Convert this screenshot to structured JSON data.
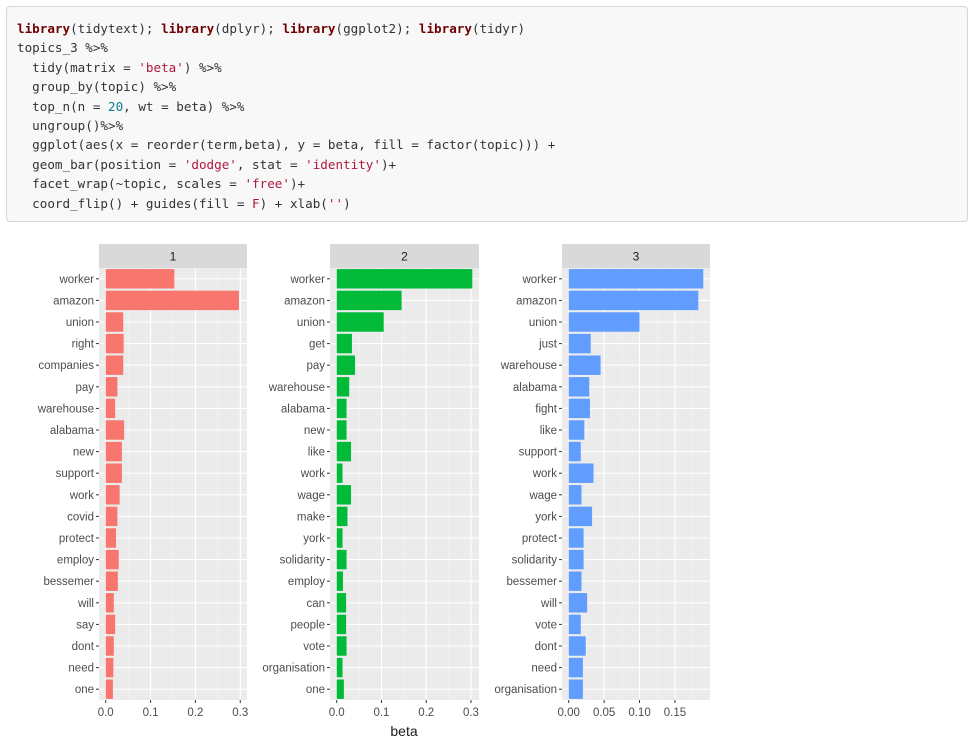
{
  "code": {
    "lines": [
      [
        {
          "t": "library",
          "c": "kw"
        },
        {
          "t": "(tidytext); "
        },
        {
          "t": "library",
          "c": "kw"
        },
        {
          "t": "(dplyr); "
        },
        {
          "t": "library",
          "c": "kw"
        },
        {
          "t": "(ggplot2); "
        },
        {
          "t": "library",
          "c": "kw"
        },
        {
          "t": "(tidyr)"
        }
      ],
      [
        {
          "t": "topics_3 %>%"
        }
      ],
      [
        {
          "t": "  tidy(matrix = "
        },
        {
          "t": "'beta'",
          "c": "str"
        },
        {
          "t": ") %>%"
        }
      ],
      [
        {
          "t": "  group_by(topic) %>%"
        }
      ],
      [
        {
          "t": "  top_n(n = "
        },
        {
          "t": "20",
          "c": "num"
        },
        {
          "t": ", wt = beta) %>%"
        }
      ],
      [
        {
          "t": "  ungroup()%>%"
        }
      ],
      [
        {
          "t": "  ggplot(aes(x = reorder(term,beta), y = beta, fill = factor(topic))) +"
        }
      ],
      [
        {
          "t": "  geom_bar(position = "
        },
        {
          "t": "'dodge'",
          "c": "str"
        },
        {
          "t": ", stat = "
        },
        {
          "t": "'identity'",
          "c": "str"
        },
        {
          "t": ")+"
        }
      ],
      [
        {
          "t": "  facet_wrap(~topic, scales = "
        },
        {
          "t": "'free'",
          "c": "str"
        },
        {
          "t": ")+"
        }
      ],
      [
        {
          "t": "  coord_flip() + guides(fill = "
        },
        {
          "t": "F",
          "c": "str"
        },
        {
          "t": ") + xlab("
        },
        {
          "t": "''",
          "c": "str"
        },
        {
          "t": ")"
        }
      ]
    ]
  },
  "chart_data": {
    "type": "bar",
    "orientation": "horizontal",
    "ylabel": "beta",
    "xlabel": "",
    "legend": "none",
    "grid": true,
    "panels": [
      {
        "strip": "1",
        "color": "#F8766D",
        "xlim": [
          -0.015,
          0.315
        ],
        "ticks": [
          0.0,
          0.1,
          0.2,
          0.3
        ],
        "tick_labels": [
          "0.0",
          "0.1",
          "0.2",
          "0.3"
        ],
        "categories": [
          "worker",
          "amazon",
          "union",
          "right",
          "companies",
          "pay",
          "warehouse",
          "alabama",
          "new",
          "support",
          "work",
          "covid",
          "protect",
          "employ",
          "bessemer",
          "will",
          "say",
          "dont",
          "need",
          "one"
        ],
        "values": [
          0.153,
          0.297,
          0.039,
          0.04,
          0.039,
          0.026,
          0.021,
          0.041,
          0.036,
          0.036,
          0.031,
          0.026,
          0.023,
          0.029,
          0.027,
          0.018,
          0.021,
          0.018,
          0.017,
          0.016
        ]
      },
      {
        "strip": "2",
        "color": "#00BA38",
        "xlim": [
          -0.015,
          0.318
        ],
        "ticks": [
          0.0,
          0.1,
          0.2,
          0.3
        ],
        "tick_labels": [
          "0.0",
          "0.1",
          "0.2",
          "0.3"
        ],
        "categories": [
          "worker",
          "amazon",
          "union",
          "get",
          "pay",
          "warehouse",
          "alabama",
          "new",
          "like",
          "work",
          "wage",
          "make",
          "york",
          "solidarity",
          "employ",
          "can",
          "people",
          "vote",
          "organisation",
          "one"
        ],
        "values": [
          0.303,
          0.145,
          0.105,
          0.034,
          0.041,
          0.028,
          0.022,
          0.022,
          0.032,
          0.013,
          0.032,
          0.024,
          0.013,
          0.022,
          0.014,
          0.021,
          0.021,
          0.022,
          0.013,
          0.016
        ]
      },
      {
        "strip": "3",
        "color": "#619CFF",
        "xlim": [
          -0.0095,
          0.1995
        ],
        "ticks": [
          0.0,
          0.05,
          0.1,
          0.15
        ],
        "tick_labels": [
          "0.00",
          "0.05",
          "0.10",
          "0.15"
        ],
        "categories": [
          "worker",
          "amazon",
          "union",
          "just",
          "warehouse",
          "alabama",
          "fight",
          "like",
          "support",
          "work",
          "wage",
          "york",
          "protect",
          "solidarity",
          "bessemer",
          "will",
          "vote",
          "dont",
          "need",
          "organisation"
        ],
        "values": [
          0.19,
          0.183,
          0.1,
          0.031,
          0.045,
          0.029,
          0.03,
          0.022,
          0.017,
          0.035,
          0.018,
          0.033,
          0.021,
          0.021,
          0.018,
          0.026,
          0.017,
          0.024,
          0.02,
          0.02
        ]
      }
    ]
  }
}
